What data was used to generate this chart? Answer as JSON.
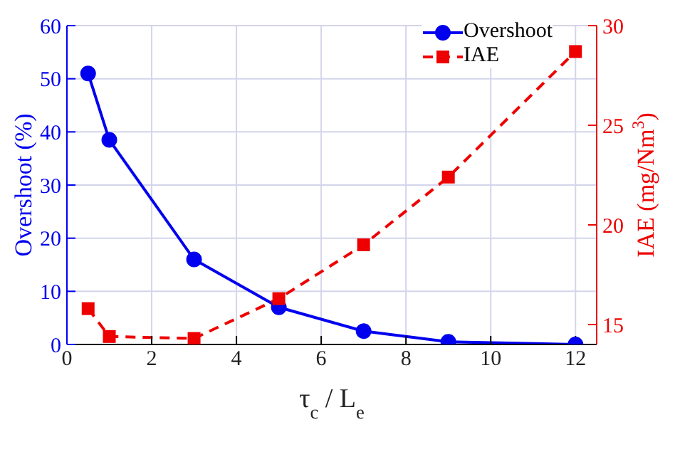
{
  "chart_data": {
    "type": "line",
    "xlabel": "τ$_{c}$ / L$_{e}$",
    "ylabel": "Overshoot (%)",
    "y2label": "IAE (mg/Nm$^{3}$)",
    "x": [
      0.5,
      1,
      3,
      5,
      7,
      9,
      12
    ],
    "series": [
      {
        "name": "Overshoot",
        "color": "#0000ee",
        "marker": "circle",
        "line_style": "solid",
        "values": [
          51,
          38.5,
          16,
          7,
          2.5,
          0.5,
          0
        ]
      },
      {
        "name": "IAE",
        "color": "#ee0000",
        "marker": "square",
        "line_style": "dashed",
        "axis": "y2",
        "values": [
          15.8,
          14.4,
          14.3,
          16.3,
          19.0,
          22.4,
          28.7
        ]
      }
    ],
    "xlim": [
      0,
      12.5
    ],
    "xticks": [
      0,
      2,
      4,
      6,
      8,
      10,
      12
    ],
    "ylim": [
      0,
      60
    ],
    "yticks": [
      0,
      10,
      20,
      30,
      40,
      50,
      60
    ],
    "y2lim": [
      14,
      30
    ],
    "y2ticks": [
      15,
      20,
      25,
      30
    ],
    "grid": true,
    "legend": "top right"
  }
}
